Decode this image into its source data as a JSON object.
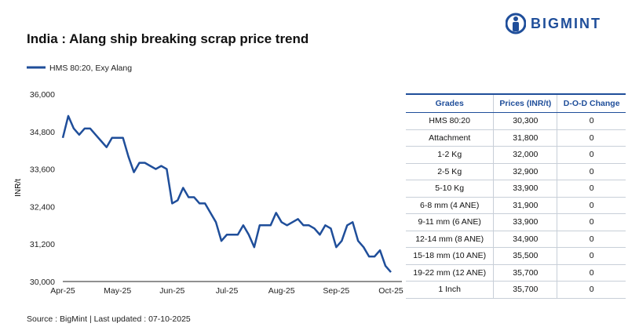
{
  "chart_data": {
    "type": "line",
    "title": "India : Alang ship breaking scrap price trend",
    "y_label": "INR/t",
    "grid": false,
    "categories": [
      "Apr-25",
      null,
      null,
      null,
      null,
      null,
      null,
      null,
      null,
      null,
      "May-25",
      null,
      null,
      null,
      null,
      null,
      null,
      null,
      null,
      null,
      "Jun-25",
      null,
      null,
      null,
      null,
      null,
      null,
      null,
      null,
      null,
      "Jul-25",
      null,
      null,
      null,
      null,
      null,
      null,
      null,
      null,
      null,
      "Aug-25",
      null,
      null,
      null,
      null,
      null,
      null,
      null,
      null,
      null,
      "Sep-25",
      null,
      null,
      null,
      null,
      null,
      null,
      null,
      null,
      null,
      "Oct-25"
    ],
    "series": [
      {
        "name": "HMS 80:20, Exy Alang",
        "color": "#1f4e9a",
        "values": [
          34600,
          35300,
          34900,
          34700,
          34900,
          34900,
          34700,
          34500,
          34300,
          34600,
          34600,
          34600,
          34000,
          33500,
          33800,
          33800,
          33700,
          33600,
          33700,
          33600,
          32500,
          32600,
          33000,
          32700,
          32700,
          32500,
          32500,
          32200,
          31900,
          31300,
          31500,
          31500,
          31500,
          31800,
          31500,
          31100,
          31800,
          31800,
          31800,
          32200,
          31900,
          31800,
          31900,
          32000,
          31800,
          31800,
          31700,
          31500,
          31800,
          31700,
          31100,
          31300,
          31800,
          31900,
          31300,
          31100,
          30800,
          30800,
          31000,
          30500,
          30300
        ]
      }
    ],
    "ylim": [
      30000,
      36000
    ],
    "yticks": [
      {
        "value": 30000,
        "label": "30,000"
      },
      {
        "value": 31200,
        "label": "31,200"
      },
      {
        "value": 32400,
        "label": "32,400"
      },
      {
        "value": 33600,
        "label": "33,600"
      },
      {
        "value": 34800,
        "label": "34,800"
      },
      {
        "value": 36000,
        "label": "36,000"
      }
    ]
  },
  "logo": "BIGMINT",
  "table": {
    "header": [
      "Grades",
      "Prices (INR/t)",
      "D-O-D Change"
    ],
    "rows": [
      [
        "HMS 80:20",
        "30,300",
        "0"
      ],
      [
        "Attachment",
        "31,800",
        "0"
      ],
      [
        "1-2 Kg",
        "32,000",
        "0"
      ],
      [
        "2-5 Kg",
        "32,900",
        "0"
      ],
      [
        "5-10 Kg",
        "33,900",
        "0"
      ],
      [
        "6-8 mm (4 ANE)",
        "31,900",
        "0"
      ],
      [
        "9-11 mm (6 ANE)",
        "33,900",
        "0"
      ],
      [
        "12-14 mm (8 ANE)",
        "34,900",
        "0"
      ],
      [
        "15-18 mm (10 ANE)",
        "35,500",
        "0"
      ],
      [
        "19-22 mm (12 ANE)",
        "35,700",
        "0"
      ],
      [
        "1 Inch",
        "35,700",
        "0"
      ]
    ]
  },
  "source": "Source : BigMint | Last updated : 07-10-2025"
}
